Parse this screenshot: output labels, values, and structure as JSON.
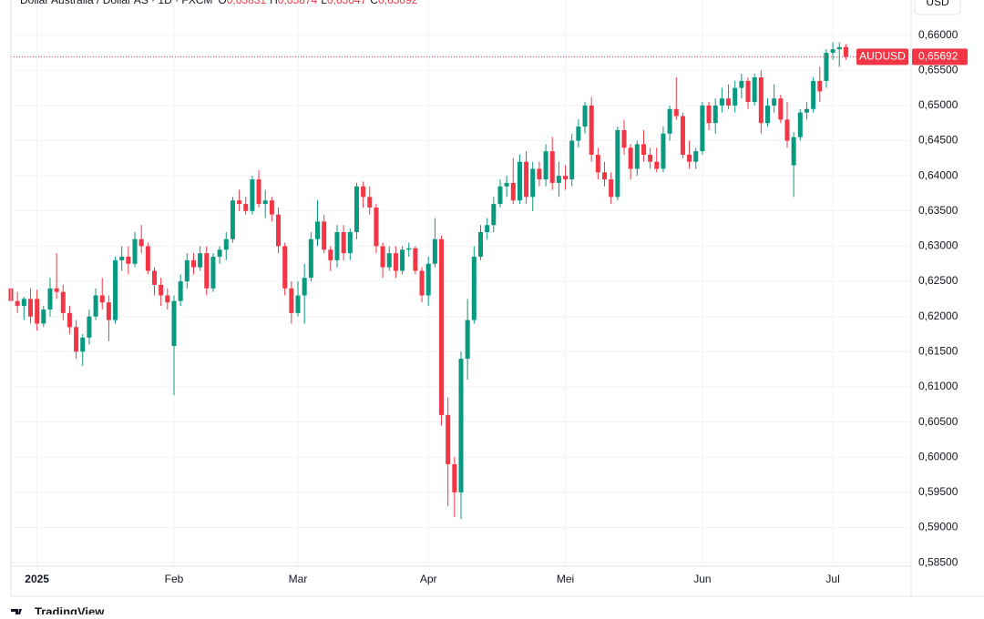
{
  "header": {
    "title": "Dollar Australia / Dollar AS · 1D · FXCM",
    "fields": [
      [
        "O",
        "0,65831"
      ],
      [
        "H",
        "0,65874"
      ],
      [
        "L",
        "0,65647"
      ],
      [
        "C",
        "0,65692"
      ]
    ],
    "currency": "USD"
  },
  "brand": "TradingView",
  "chart_data": {
    "type": "candlestick",
    "up_color": "#089981",
    "down_color": "#f23645",
    "grid": true,
    "ylim": [
      0.5845,
      0.665
    ],
    "yticks": [
      {
        "value": 0.585,
        "label": "0,58500"
      },
      {
        "value": 0.59,
        "label": "0,59000"
      },
      {
        "value": 0.595,
        "label": "0,59500"
      },
      {
        "value": 0.6,
        "label": "0,60000"
      },
      {
        "value": 0.605,
        "label": "0,60500"
      },
      {
        "value": 0.61,
        "label": "0,61000"
      },
      {
        "value": 0.615,
        "label": "0,61500"
      },
      {
        "value": 0.62,
        "label": "0,62000"
      },
      {
        "value": 0.625,
        "label": "0,62500"
      },
      {
        "value": 0.63,
        "label": "0,63000"
      },
      {
        "value": 0.635,
        "label": "0,63500"
      },
      {
        "value": 0.64,
        "label": "0,64000"
      },
      {
        "value": 0.645,
        "label": "0,64500"
      },
      {
        "value": 0.65,
        "label": "0,65000"
      },
      {
        "value": 0.655,
        "label": "0,65500"
      },
      {
        "value": 0.66,
        "label": "0,66000"
      }
    ],
    "xlim": [
      0,
      138
    ],
    "xticks": [
      {
        "value": 4,
        "label": "2025"
      },
      {
        "value": 25,
        "label": "Feb"
      },
      {
        "value": 44,
        "label": "Mar"
      },
      {
        "value": 64,
        "label": "Apr"
      },
      {
        "value": 85,
        "label": "Mei"
      },
      {
        "value": 106,
        "label": "Jun"
      },
      {
        "value": 126,
        "label": "Jul"
      }
    ],
    "last": {
      "symbol": "AUDUSD",
      "value": 0.65692,
      "label": "0,65692"
    },
    "candles": [
      [
        0.624,
        0.6248,
        0.6215,
        0.6222
      ],
      [
        0.6222,
        0.6235,
        0.6205,
        0.6215
      ],
      [
        0.6215,
        0.6228,
        0.6195,
        0.6225
      ],
      [
        0.6225,
        0.624,
        0.619,
        0.62
      ],
      [
        0.6225,
        0.6238,
        0.618,
        0.619
      ],
      [
        0.619,
        0.6215,
        0.6185,
        0.621
      ],
      [
        0.621,
        0.6255,
        0.62,
        0.624
      ],
      [
        0.624,
        0.629,
        0.6225,
        0.6235
      ],
      [
        0.6235,
        0.6245,
        0.6195,
        0.6205
      ],
      [
        0.6205,
        0.6215,
        0.6175,
        0.6185
      ],
      [
        0.6185,
        0.6195,
        0.614,
        0.615
      ],
      [
        0.615,
        0.6175,
        0.613,
        0.617
      ],
      [
        0.617,
        0.621,
        0.616,
        0.62
      ],
      [
        0.62,
        0.624,
        0.6195,
        0.623
      ],
      [
        0.623,
        0.6255,
        0.621,
        0.622
      ],
      [
        0.622,
        0.623,
        0.6165,
        0.6195
      ],
      [
        0.6195,
        0.6285,
        0.619,
        0.628
      ],
      [
        0.628,
        0.63,
        0.6265,
        0.6285
      ],
      [
        0.6285,
        0.63,
        0.626,
        0.6275
      ],
      [
        0.6275,
        0.632,
        0.627,
        0.631
      ],
      [
        0.631,
        0.633,
        0.629,
        0.63
      ],
      [
        0.63,
        0.6305,
        0.626,
        0.6265
      ],
      [
        0.6265,
        0.627,
        0.623,
        0.6245
      ],
      [
        0.6245,
        0.6255,
        0.6215,
        0.623
      ],
      [
        0.623,
        0.624,
        0.621,
        0.622
      ],
      [
        0.6158,
        0.623,
        0.6088,
        0.6222
      ],
      [
        0.6222,
        0.626,
        0.6215,
        0.625
      ],
      [
        0.625,
        0.629,
        0.624,
        0.628
      ],
      [
        0.628,
        0.629,
        0.626,
        0.627
      ],
      [
        0.627,
        0.63,
        0.6265,
        0.629
      ],
      [
        0.629,
        0.63,
        0.623,
        0.624
      ],
      [
        0.624,
        0.629,
        0.6235,
        0.6285
      ],
      [
        0.6285,
        0.63,
        0.6275,
        0.6295
      ],
      [
        0.6295,
        0.632,
        0.628,
        0.631
      ],
      [
        0.631,
        0.637,
        0.6305,
        0.6365
      ],
      [
        0.6365,
        0.638,
        0.635,
        0.636
      ],
      [
        0.636,
        0.637,
        0.6345,
        0.635
      ],
      [
        0.635,
        0.64,
        0.6345,
        0.6395
      ],
      [
        0.6395,
        0.6408,
        0.6355,
        0.636
      ],
      [
        0.636,
        0.638,
        0.634,
        0.6365
      ],
      [
        0.6365,
        0.637,
        0.6335,
        0.6345
      ],
      [
        0.6345,
        0.6355,
        0.629,
        0.63
      ],
      [
        0.63,
        0.6305,
        0.623,
        0.624
      ],
      [
        0.624,
        0.625,
        0.619,
        0.6205
      ],
      [
        0.6205,
        0.625,
        0.62,
        0.623
      ],
      [
        0.623,
        0.6275,
        0.619,
        0.6255
      ],
      [
        0.6255,
        0.632,
        0.625,
        0.631
      ],
      [
        0.631,
        0.6365,
        0.63,
        0.6335
      ],
      [
        0.6335,
        0.6345,
        0.629,
        0.6295
      ],
      [
        0.6295,
        0.63,
        0.6265,
        0.628
      ],
      [
        0.628,
        0.633,
        0.627,
        0.632
      ],
      [
        0.632,
        0.633,
        0.628,
        0.629
      ],
      [
        0.629,
        0.6325,
        0.628,
        0.632
      ],
      [
        0.632,
        0.639,
        0.631,
        0.6385
      ],
      [
        0.6385,
        0.6392,
        0.6355,
        0.637
      ],
      [
        0.637,
        0.6385,
        0.6345,
        0.6355
      ],
      [
        0.6355,
        0.636,
        0.629,
        0.63
      ],
      [
        0.63,
        0.6305,
        0.6255,
        0.627
      ],
      [
        0.627,
        0.63,
        0.6265,
        0.629
      ],
      [
        0.629,
        0.63,
        0.6255,
        0.6265
      ],
      [
        0.6265,
        0.63,
        0.626,
        0.6295
      ],
      [
        0.6295,
        0.6305,
        0.6285,
        0.6297
      ],
      [
        0.6297,
        0.63,
        0.626,
        0.6265
      ],
      [
        0.6265,
        0.627,
        0.622,
        0.623
      ],
      [
        0.623,
        0.6285,
        0.6215,
        0.6275
      ],
      [
        0.6275,
        0.634,
        0.627,
        0.631
      ],
      [
        0.631,
        0.6315,
        0.6045,
        0.606
      ],
      [
        0.606,
        0.6085,
        0.593,
        0.599
      ],
      [
        0.599,
        0.6,
        0.5915,
        0.595
      ],
      [
        0.595,
        0.615,
        0.5912,
        0.614
      ],
      [
        0.614,
        0.6225,
        0.611,
        0.6195
      ],
      [
        0.6195,
        0.63,
        0.619,
        0.6285
      ],
      [
        0.6285,
        0.633,
        0.628,
        0.632
      ],
      [
        0.632,
        0.634,
        0.631,
        0.633
      ],
      [
        0.633,
        0.637,
        0.632,
        0.636
      ],
      [
        0.636,
        0.6395,
        0.6355,
        0.6385
      ],
      [
        0.6385,
        0.64,
        0.637,
        0.639
      ],
      [
        0.639,
        0.6425,
        0.636,
        0.6365
      ],
      [
        0.6365,
        0.643,
        0.636,
        0.642
      ],
      [
        0.642,
        0.6435,
        0.636,
        0.637
      ],
      [
        0.637,
        0.642,
        0.635,
        0.641
      ],
      [
        0.641,
        0.642,
        0.6385,
        0.6395
      ],
      [
        0.6395,
        0.6445,
        0.6385,
        0.6435
      ],
      [
        0.6435,
        0.6455,
        0.638,
        0.639
      ],
      [
        0.639,
        0.642,
        0.637,
        0.64
      ],
      [
        0.64,
        0.6415,
        0.638,
        0.6395
      ],
      [
        0.6395,
        0.646,
        0.6385,
        0.645
      ],
      [
        0.645,
        0.648,
        0.644,
        0.647
      ],
      [
        0.647,
        0.6505,
        0.646,
        0.65
      ],
      [
        0.65,
        0.6512,
        0.642,
        0.643
      ],
      [
        0.643,
        0.644,
        0.6395,
        0.6405
      ],
      [
        0.6405,
        0.642,
        0.6385,
        0.6395
      ],
      [
        0.6395,
        0.6405,
        0.636,
        0.637
      ],
      [
        0.637,
        0.647,
        0.6365,
        0.6465
      ],
      [
        0.6465,
        0.648,
        0.643,
        0.644
      ],
      [
        0.644,
        0.6445,
        0.6395,
        0.641
      ],
      [
        0.641,
        0.645,
        0.64,
        0.6445
      ],
      [
        0.6445,
        0.6465,
        0.642,
        0.643
      ],
      [
        0.643,
        0.644,
        0.641,
        0.642
      ],
      [
        0.642,
        0.644,
        0.6405,
        0.641
      ],
      [
        0.641,
        0.647,
        0.6405,
        0.646
      ],
      [
        0.646,
        0.65,
        0.645,
        0.6495
      ],
      [
        0.6495,
        0.654,
        0.648,
        0.6485
      ],
      [
        0.6485,
        0.649,
        0.6425,
        0.643
      ],
      [
        0.643,
        0.645,
        0.641,
        0.642
      ],
      [
        0.642,
        0.644,
        0.641,
        0.6435
      ],
      [
        0.6435,
        0.6505,
        0.643,
        0.65
      ],
      [
        0.65,
        0.6505,
        0.6465,
        0.6475
      ],
      [
        0.6475,
        0.651,
        0.646,
        0.65
      ],
      [
        0.65,
        0.6525,
        0.649,
        0.651
      ],
      [
        0.651,
        0.653,
        0.6495,
        0.65
      ],
      [
        0.65,
        0.6535,
        0.649,
        0.6525
      ],
      [
        0.6525,
        0.6545,
        0.651,
        0.6535
      ],
      [
        0.6535,
        0.654,
        0.6495,
        0.6505
      ],
      [
        0.6505,
        0.6545,
        0.65,
        0.654
      ],
      [
        0.654,
        0.655,
        0.646,
        0.6475
      ],
      [
        0.6475,
        0.651,
        0.647,
        0.65
      ],
      [
        0.65,
        0.653,
        0.649,
        0.651
      ],
      [
        0.651,
        0.6515,
        0.6475,
        0.648
      ],
      [
        0.648,
        0.6505,
        0.644,
        0.645
      ],
      [
        0.6415,
        0.6462,
        0.637,
        0.6455
      ],
      [
        0.6455,
        0.6495,
        0.645,
        0.649
      ],
      [
        0.649,
        0.6505,
        0.648,
        0.6495
      ],
      [
        0.6495,
        0.654,
        0.649,
        0.6535
      ],
      [
        0.6535,
        0.6555,
        0.6505,
        0.652
      ],
      [
        0.6535,
        0.658,
        0.6525,
        0.6575
      ],
      [
        0.6575,
        0.659,
        0.6565,
        0.658
      ],
      [
        0.658,
        0.659,
        0.6555,
        0.6583
      ],
      [
        0.65831,
        0.65874,
        0.65647,
        0.65692
      ]
    ]
  }
}
